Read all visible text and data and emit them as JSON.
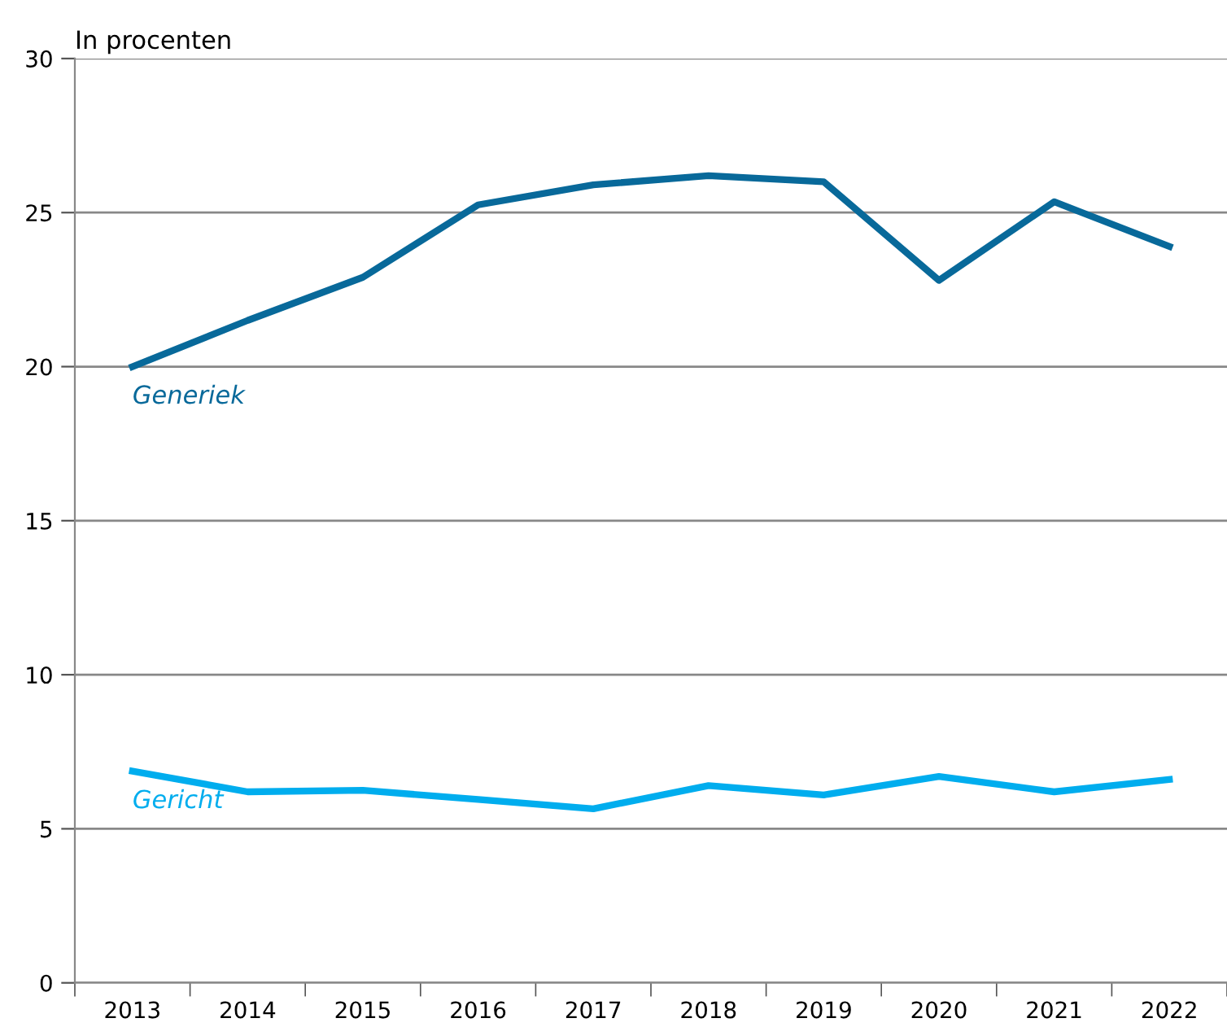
{
  "chart_data": {
    "type": "line",
    "ylabel": "In procenten",
    "categories": [
      "2013",
      "2014",
      "2015",
      "2016",
      "2017",
      "2018",
      "2019",
      "2020",
      "2021",
      "2022"
    ],
    "series": [
      {
        "name": "Generiek",
        "color": "#08699a",
        "values": [
          20.0,
          21.5,
          22.9,
          25.25,
          25.9,
          26.2,
          26.0,
          22.8,
          25.35,
          23.9
        ]
      },
      {
        "name": "Gericht",
        "color": "#00adee",
        "values": [
          6.87,
          6.2,
          6.25,
          5.95,
          5.65,
          6.4,
          6.1,
          6.7,
          6.2,
          6.6
        ]
      }
    ],
    "ylim": [
      0,
      30
    ],
    "yticks": [
      0,
      5,
      10,
      15,
      20,
      25,
      30
    ],
    "grid": "y",
    "legend": false,
    "marker": "none",
    "line_style": "solid"
  }
}
